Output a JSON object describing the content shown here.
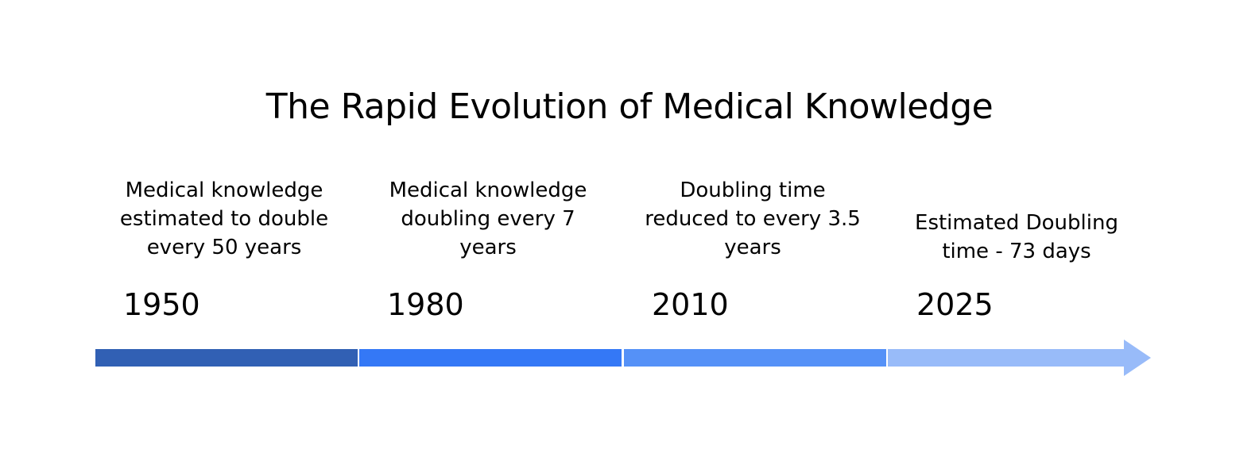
{
  "title": "The Rapid Evolution of Medical Knowledge",
  "milestones": [
    {
      "year": "1950",
      "description_lines": [
        "Medical knowledge",
        "estimated to double",
        "every 50 years"
      ],
      "color": "#3160b4"
    },
    {
      "year": "1980",
      "description_lines": [
        "Medical knowledge",
        "doubling every 7",
        "years"
      ],
      "color": "#3478f6"
    },
    {
      "year": "2010",
      "description_lines": [
        "Doubling time",
        "reduced to every 3.5",
        "years"
      ],
      "color": "#5591f7"
    },
    {
      "year": "2025",
      "description_lines": [
        "Estimated Doubling",
        "time - 73 days"
      ],
      "color": "#98bbf9"
    }
  ]
}
